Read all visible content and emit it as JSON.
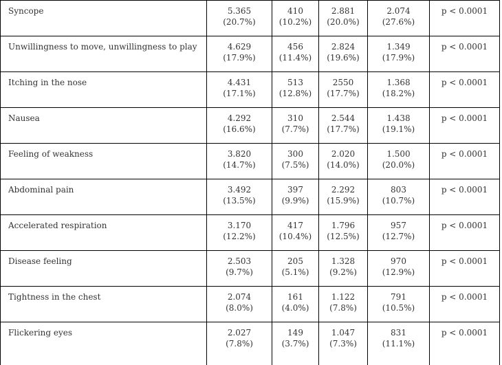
{
  "rows": [
    {
      "label": "Syncope",
      "c1": {
        "n": "5.365",
        "p": "(20.7%)"
      },
      "c2": {
        "n": "410",
        "p": "(10.2%)"
      },
      "c3": {
        "n": "2.881",
        "p": "(20.0%)"
      },
      "c4": {
        "n": "2.074",
        "p": "(27.6%)"
      },
      "pval": "p < 0.0001"
    },
    {
      "label": "Unwillingness to move, unwillingness to play",
      "c1": {
        "n": "4.629",
        "p": "(17.9%)"
      },
      "c2": {
        "n": "456",
        "p": "(11.4%)"
      },
      "c3": {
        "n": "2.824",
        "p": "(19.6%)"
      },
      "c4": {
        "n": "1.349",
        "p": "(17.9%)"
      },
      "pval": "p < 0.0001"
    },
    {
      "label": "Itching in the nose",
      "c1": {
        "n": "4.431",
        "p": "(17.1%)"
      },
      "c2": {
        "n": "513",
        "p": "(12.8%)"
      },
      "c3": {
        "n": "2550",
        "p": "(17.7%)"
      },
      "c4": {
        "n": "1.368",
        "p": "(18.2%)"
      },
      "pval": "p < 0.0001"
    },
    {
      "label": "Nausea",
      "c1": {
        "n": "4.292",
        "p": "(16.6%)"
      },
      "c2": {
        "n": "310",
        "p": "(7.7%)"
      },
      "c3": {
        "n": "2.544",
        "p": "(17.7%)"
      },
      "c4": {
        "n": "1.438",
        "p": "(19.1%)"
      },
      "pval": "p < 0.0001"
    },
    {
      "label": "Feeling of weakness",
      "c1": {
        "n": "3.820",
        "p": "(14.7%)"
      },
      "c2": {
        "n": "300",
        "p": "(7.5%)"
      },
      "c3": {
        "n": "2.020",
        "p": "(14.0%)"
      },
      "c4": {
        "n": "1.500",
        "p": "(20.0%)"
      },
      "pval": "p < 0.0001"
    },
    {
      "label": "Abdominal pain",
      "c1": {
        "n": "3.492",
        "p": "(13.5%)"
      },
      "c2": {
        "n": "397",
        "p": "(9.9%)"
      },
      "c3": {
        "n": "2.292",
        "p": "(15.9%)"
      },
      "c4": {
        "n": "803",
        "p": "(10.7%)"
      },
      "pval": "p < 0.0001"
    },
    {
      "label": "Accelerated respiration",
      "c1": {
        "n": "3.170",
        "p": "(12.2%)"
      },
      "c2": {
        "n": "417",
        "p": "(10.4%)"
      },
      "c3": {
        "n": "1.796",
        "p": "(12.5%)"
      },
      "c4": {
        "n": "957",
        "p": "(12.7%)"
      },
      "pval": "p < 0.0001"
    },
    {
      "label": "Disease feeling",
      "c1": {
        "n": "2.503",
        "p": "(9.7%)"
      },
      "c2": {
        "n": "205",
        "p": "(5.1%)"
      },
      "c3": {
        "n": "1.328",
        "p": "(9.2%)"
      },
      "c4": {
        "n": "970",
        "p": "(12.9%)"
      },
      "pval": "p < 0.0001"
    },
    {
      "label": "Tightness in the chest",
      "c1": {
        "n": "2.074",
        "p": "(8.0%)"
      },
      "c2": {
        "n": "161",
        "p": "(4.0%)"
      },
      "c3": {
        "n": "1.122",
        "p": "(7.8%)"
      },
      "c4": {
        "n": "791",
        "p": "(10.5%)"
      },
      "pval": "p < 0.0001"
    },
    {
      "label": "Flickering eyes",
      "c1": {
        "n": "2.027",
        "p": "(7.8%)"
      },
      "c2": {
        "n": "149",
        "p": "(3.7%)"
      },
      "c3": {
        "n": "1.047",
        "p": "(7.3%)"
      },
      "c4": {
        "n": "831",
        "p": "(11.1%)"
      },
      "pval": "p < 0.0001"
    }
  ]
}
